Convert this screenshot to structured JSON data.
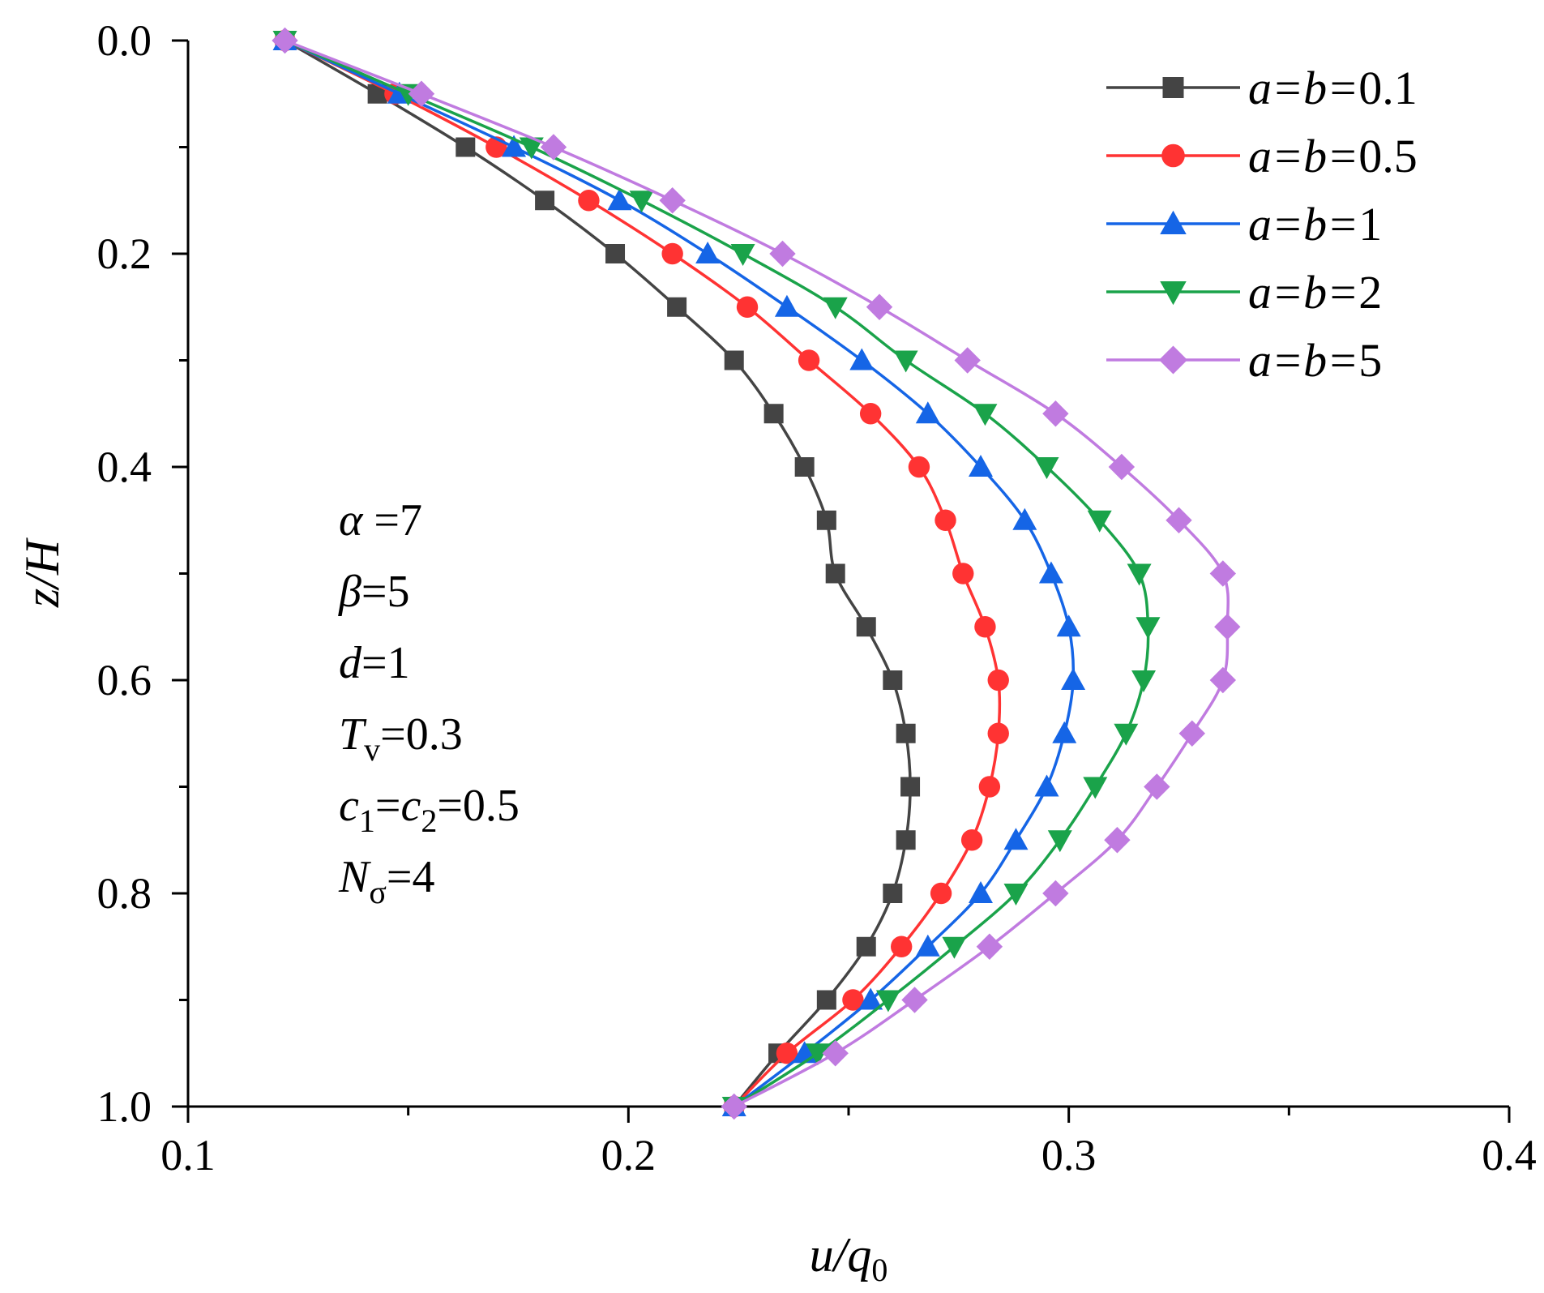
{
  "chart_data": {
    "type": "line",
    "orientation": "y-down profile",
    "xlabel": {
      "main": "u/q",
      "sub": "0"
    },
    "ylabel": "z/H",
    "xlim": [
      0.1,
      0.4
    ],
    "ylim": [
      0.0,
      1.0
    ],
    "y_inverted": true,
    "xticks": [
      0.1,
      0.2,
      0.3,
      0.4
    ],
    "xtick_labels": [
      "0.1",
      "0.2",
      "0.3",
      "0.4"
    ],
    "yticks": [
      0.0,
      0.2,
      0.4,
      0.6,
      0.8,
      1.0
    ],
    "ytick_labels": [
      "0.0",
      "0.2",
      "0.4",
      "0.6",
      "0.8",
      "1.0"
    ],
    "legend_position": "top-right",
    "z": [
      0.0,
      0.05,
      0.1,
      0.15,
      0.2,
      0.25,
      0.3,
      0.35,
      0.4,
      0.45,
      0.5,
      0.55,
      0.6,
      0.65,
      0.7,
      0.75,
      0.8,
      0.85,
      0.9,
      0.95,
      1.0
    ],
    "series": [
      {
        "legend_var": "a=b=",
        "legend_value": "0.1",
        "color": "#444444",
        "marker": "square",
        "values": [
          0.122,
          0.143,
          0.163,
          0.181,
          0.197,
          0.211,
          0.224,
          0.233,
          0.24,
          0.245,
          0.247,
          0.254,
          0.26,
          0.263,
          0.264,
          0.263,
          0.26,
          0.254,
          0.245,
          0.234,
          0.224
        ]
      },
      {
        "legend_var": "a=b=",
        "legend_value": "0.5",
        "color": "#ff3333",
        "marker": "circle",
        "values": [
          0.122,
          0.147,
          0.17,
          0.191,
          0.21,
          0.227,
          0.241,
          0.255,
          0.266,
          0.272,
          0.276,
          0.281,
          0.284,
          0.284,
          0.282,
          0.278,
          0.271,
          0.262,
          0.251,
          0.236,
          0.224
        ]
      },
      {
        "legend_var": "a=b=",
        "legend_value": "1",
        "color": "#1565e6",
        "marker": "triangle-up",
        "values": [
          0.122,
          0.148,
          0.174,
          0.198,
          0.218,
          0.236,
          0.253,
          0.268,
          0.28,
          0.29,
          0.296,
          0.3,
          0.301,
          0.299,
          0.295,
          0.288,
          0.28,
          0.268,
          0.255,
          0.24,
          0.224
        ]
      },
      {
        "legend_var": "a=b=",
        "legend_value": "2",
        "color": "#1aa34a",
        "marker": "triangle-down",
        "values": [
          0.122,
          0.15,
          0.178,
          0.203,
          0.226,
          0.247,
          0.263,
          0.281,
          0.295,
          0.307,
          0.316,
          0.318,
          0.317,
          0.313,
          0.306,
          0.298,
          0.288,
          0.274,
          0.259,
          0.243,
          0.224
        ]
      },
      {
        "legend_var": "a=b=",
        "legend_value": "5",
        "color": "#c07be0",
        "marker": "diamond",
        "values": [
          0.122,
          0.153,
          0.183,
          0.21,
          0.235,
          0.257,
          0.277,
          0.297,
          0.312,
          0.325,
          0.335,
          0.336,
          0.335,
          0.328,
          0.32,
          0.311,
          0.297,
          0.282,
          0.265,
          0.247,
          0.224
        ]
      }
    ],
    "annotations": [
      {
        "italic": "α",
        "rest": " =7"
      },
      {
        "italic": "β",
        "rest": "=5"
      },
      {
        "italic": "d",
        "rest": "=1"
      },
      {
        "italic": "T",
        "sub": "v",
        "rest": "=0.3"
      },
      {
        "italic": "c",
        "sub": "1",
        "mid": "=",
        "italic2": "c",
        "sub2": "2",
        "rest": "=0.5"
      },
      {
        "italic": "N",
        "sub": "σ",
        "rest": "=4"
      }
    ]
  }
}
